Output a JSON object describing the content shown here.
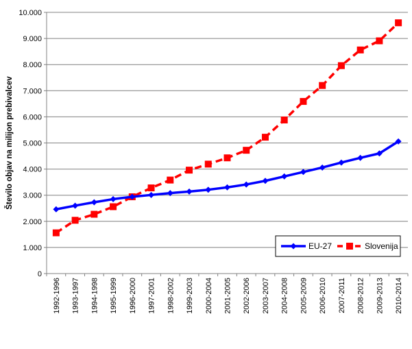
{
  "chart_data": {
    "type": "line",
    "title": "",
    "xlabel": "",
    "ylabel": "Število objav na milijon prebivalcev",
    "ylim": [
      0,
      10000
    ],
    "yticks": [
      0,
      1000,
      2000,
      3000,
      4000,
      5000,
      6000,
      7000,
      8000,
      9000,
      10000
    ],
    "ytick_labels": [
      "0",
      "1.000",
      "2.000",
      "3.000",
      "4.000",
      "5.000",
      "6.000",
      "7.000",
      "8.000",
      "9.000",
      "10.000"
    ],
    "grid": true,
    "legend": "bottom-right",
    "categories": [
      "1992-1996",
      "1993-1997",
      "1994-1998",
      "1995-1999",
      "1996-2000",
      "1997-2001",
      "1998-2002",
      "1999-2003",
      "2000-2004",
      "2001-2005",
      "2002-2006",
      "2003-2007",
      "2004-2008",
      "2005-2009",
      "2006-2010",
      "2007-2011",
      "2008-2012",
      "2009-2013",
      "2010-2014"
    ],
    "series": [
      {
        "name": "EU-27",
        "color": "#0000ff",
        "marker": "diamond",
        "line_style": "solid",
        "values": [
          2460,
          2600,
          2730,
          2850,
          2940,
          3010,
          3080,
          3140,
          3210,
          3300,
          3410,
          3550,
          3720,
          3890,
          4060,
          4250,
          4430,
          4600,
          5060
        ]
      },
      {
        "name": "Slovenija",
        "color": "#ff0000",
        "marker": "square",
        "line_style": "dashed",
        "values": [
          1560,
          2040,
          2270,
          2560,
          2940,
          3280,
          3580,
          3960,
          4190,
          4430,
          4720,
          5220,
          5880,
          6590,
          7200,
          7960,
          8560,
          8910,
          9600
        ]
      }
    ]
  }
}
